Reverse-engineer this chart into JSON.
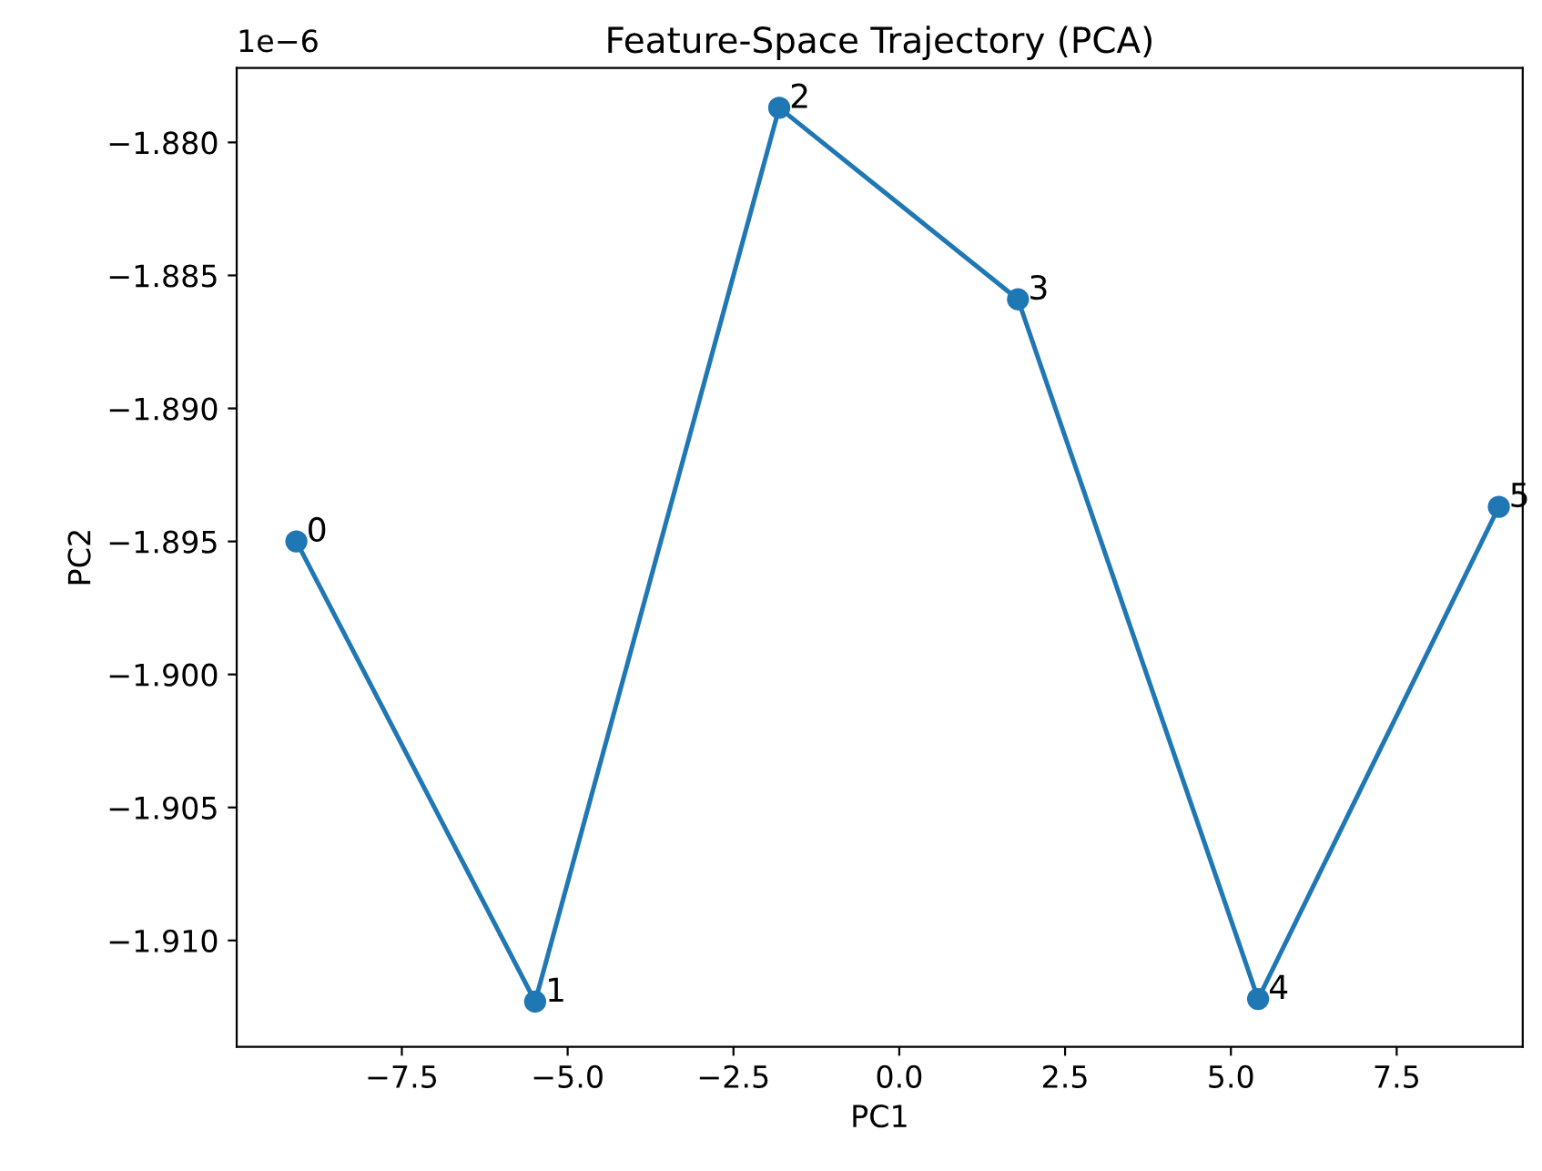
{
  "chart_data": {
    "type": "line",
    "title": "Feature-Space Trajectory (PCA)",
    "xlabel": "PC1",
    "ylabel": "PC2",
    "x": [
      -9.09,
      -5.49,
      -1.81,
      1.79,
      5.41,
      9.04
    ],
    "series": [
      {
        "color": "#1f77b4",
        "values": [
          -1.895,
          -1.9123,
          -1.8787,
          -1.8859,
          -1.9122,
          -1.8937
        ]
      }
    ],
    "marker": "circle",
    "line_style": "solid",
    "grid": false,
    "legend": false,
    "xlim": [
      -9.99,
      9.4
    ],
    "ylim": [
      -1.914,
      -1.8772
    ],
    "xticks": [
      {
        "value": -7.5,
        "label": "−7.5"
      },
      {
        "value": -5.0,
        "label": "−5.0"
      },
      {
        "value": -2.5,
        "label": "−2.5"
      },
      {
        "value": 0.0,
        "label": "0.0"
      },
      {
        "value": 2.5,
        "label": "2.5"
      },
      {
        "value": 5.0,
        "label": "5.0"
      },
      {
        "value": 7.5,
        "label": "7.5"
      }
    ],
    "yticks": [
      {
        "value": -1.88,
        "label": "−1.880"
      },
      {
        "value": -1.885,
        "label": "−1.885"
      },
      {
        "value": -1.89,
        "label": "−1.890"
      },
      {
        "value": -1.895,
        "label": "−1.895"
      },
      {
        "value": -1.9,
        "label": "−1.900"
      },
      {
        "value": -1.905,
        "label": "−1.905"
      },
      {
        "value": -1.91,
        "label": "−1.910"
      }
    ],
    "annotations": [
      {
        "text": "0",
        "x": -9.09,
        "y": -1.895
      },
      {
        "text": "1",
        "x": -5.49,
        "y": -1.9123
      },
      {
        "text": "2",
        "x": -1.81,
        "y": -1.8787
      },
      {
        "text": "3",
        "x": 1.79,
        "y": -1.8859
      },
      {
        "text": "4",
        "x": 5.41,
        "y": -1.9122
      },
      {
        "text": "5",
        "x": 9.04,
        "y": -1.8937
      },
      "1e−6"
    ]
  }
}
